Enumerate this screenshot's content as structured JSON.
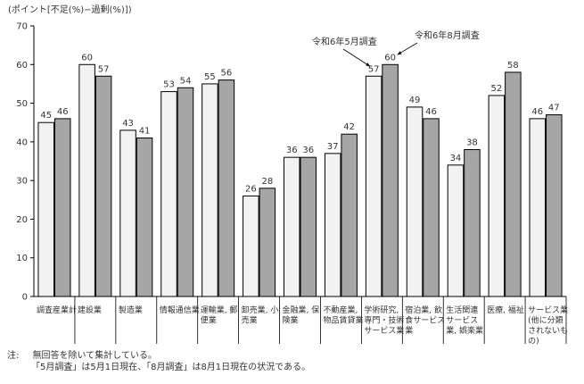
{
  "chart_data": {
    "type": "bar",
    "ylabel": "(ポイント[不足(%)−過剰(%)])",
    "ylim": [
      0,
      70
    ],
    "yticks": [
      0,
      10,
      20,
      30,
      40,
      50,
      60,
      70
    ],
    "grid": false,
    "categories": [
      [
        "調査産業計"
      ],
      [
        "建設業"
      ],
      [
        "製造業"
      ],
      [
        "情報通信業"
      ],
      [
        "運輸業, 郵",
        "便業"
      ],
      [
        "卸売業, 小",
        "売業"
      ],
      [
        "金融業, 保",
        "険業"
      ],
      [
        "不動産業,",
        "物品賃貸業"
      ],
      [
        "学術研究,",
        "専門・技術",
        "サービス業"
      ],
      [
        "宿泊業, 飲",
        "食サービス",
        "業"
      ],
      [
        "生活関連",
        "サービス",
        "業, 娯楽業"
      ],
      [
        "医療, 福祉"
      ],
      [
        "サービス業",
        "(他に分類",
        "されないも",
        "の)"
      ]
    ],
    "series": [
      {
        "name": "令和6年5月調査",
        "color": "#f2f2f2",
        "values": [
          45,
          60,
          43,
          53,
          55,
          26,
          36,
          37,
          57,
          49,
          34,
          52,
          46
        ]
      },
      {
        "name": "令和6年8月調査",
        "color": "#a6a6a6",
        "values": [
          46,
          57,
          41,
          54,
          56,
          28,
          36,
          42,
          60,
          46,
          38,
          58,
          47
        ]
      }
    ],
    "annotations": [
      {
        "text": "令和6年5月調査",
        "series": 0,
        "category": 8
      },
      {
        "text": "令和6年8月調査",
        "series": 1,
        "category": 8
      }
    ]
  },
  "notes": {
    "label": "注:",
    "line1": "無回答を除いて集計している。",
    "line2": "「5月調査」は5月1日現在、「8月調査」は8月1日現在の状況である。"
  }
}
